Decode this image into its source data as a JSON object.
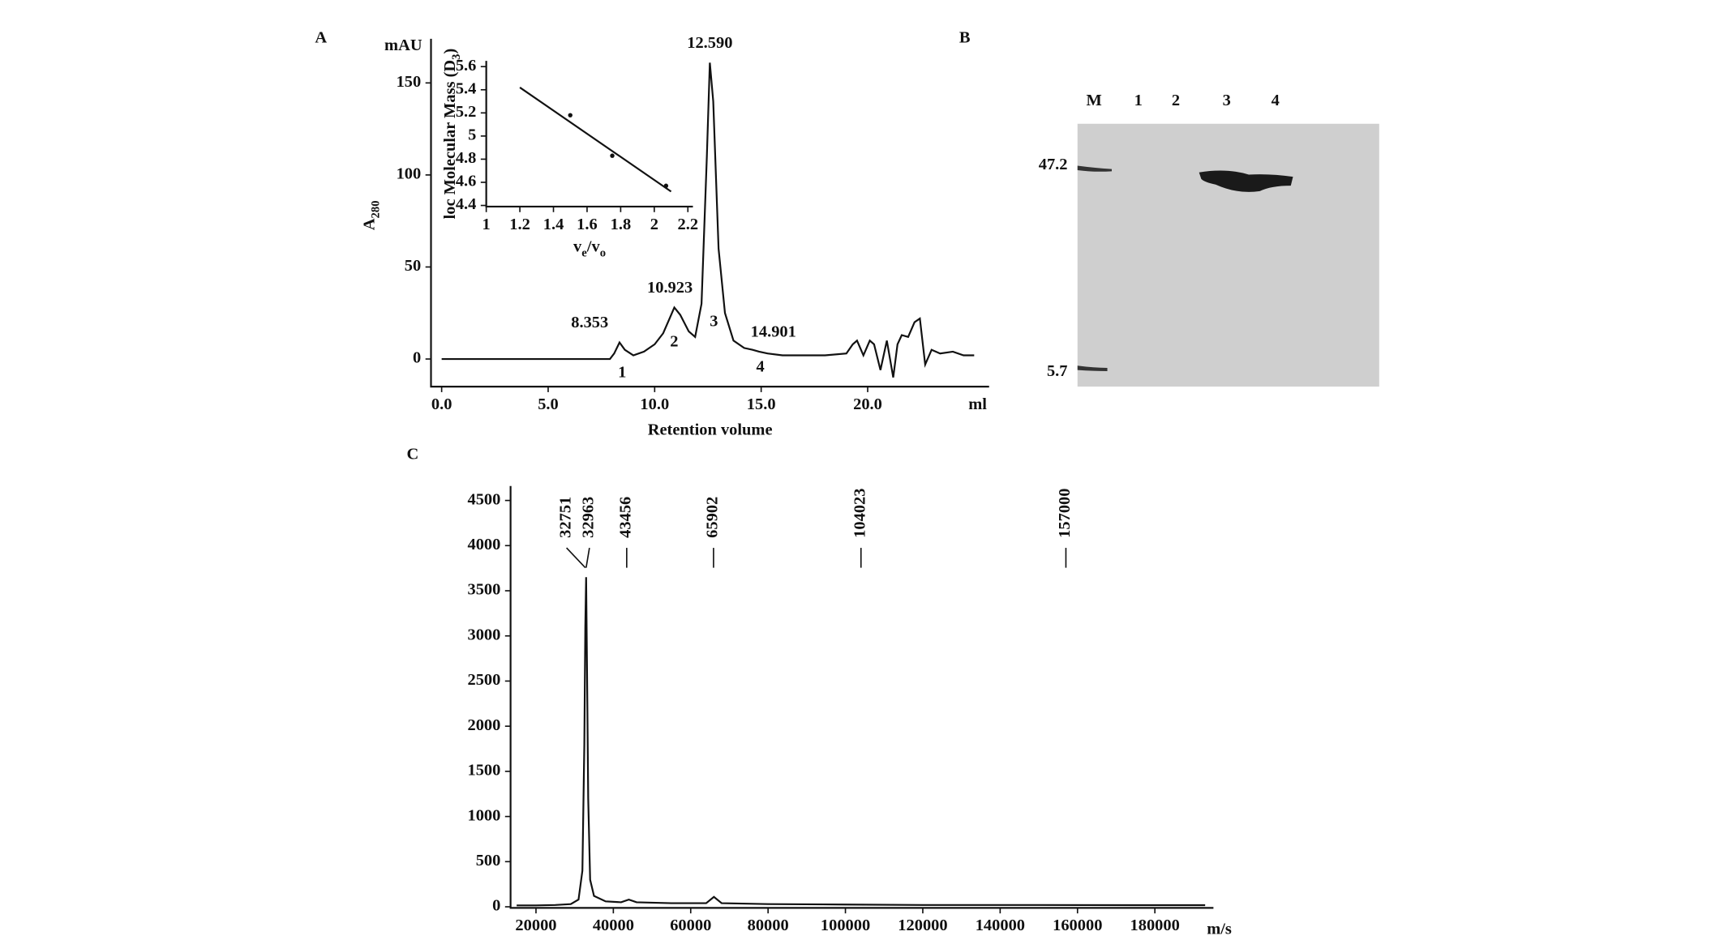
{
  "chart_data": [
    {
      "type": "line",
      "panel_label": "A",
      "y_unit": "mAU",
      "ylabel": [
        {
          "text": "A"
        },
        {
          "text": "280",
          "sub": true
        }
      ],
      "xlabel": "Retention volume",
      "x_unit": "ml",
      "xlim": [
        -0.5,
        25.7
      ],
      "ylim": [
        -15,
        174
      ],
      "xticks": [
        {
          "value": 0,
          "label": "0.0"
        },
        {
          "value": 5,
          "label": "5.0"
        },
        {
          "value": 10,
          "label": "10.0"
        },
        {
          "value": 15,
          "label": "15.0"
        },
        {
          "value": 20,
          "label": "20.0"
        }
      ],
      "yticks": [
        0,
        50,
        100,
        150
      ],
      "color": "#111111",
      "x": [
        0,
        7.9,
        8.1,
        8.35,
        8.6,
        9.0,
        9.5,
        10.0,
        10.4,
        10.7,
        10.923,
        11.2,
        11.6,
        11.9,
        12.2,
        12.45,
        12.59,
        12.75,
        13.0,
        13.3,
        13.7,
        14.2,
        14.6,
        14.901,
        15.3,
        16,
        17,
        18,
        19,
        19.3,
        19.5,
        19.8,
        20.1,
        20.3,
        20.6,
        20.9,
        21.2,
        21.4,
        21.6,
        21.9,
        22.2,
        22.45,
        22.7,
        23.0,
        23.4,
        24,
        24.5,
        25
      ],
      "values": [
        0,
        0,
        3,
        9,
        5,
        2,
        4,
        8,
        14,
        22,
        28,
        24,
        15,
        12,
        30,
        110,
        161,
        140,
        60,
        25,
        10,
        6,
        5,
        4,
        3,
        2,
        2,
        2,
        3,
        8,
        10,
        2,
        10,
        8,
        -6,
        10,
        -10,
        8,
        13,
        12,
        20,
        22,
        -3,
        5,
        3,
        4,
        2,
        2
      ],
      "peak_labels": [
        8.353,
        10.923,
        {
          "value": 12.59,
          "label": "12.590"
        },
        14.901
      ],
      "peak_numbers": [
        "1",
        "2",
        "3",
        "4"
      ]
    },
    {
      "type": "scatter",
      "ylabel": [
        {
          "text": "loc Molecular Mass (D"
        },
        {
          "text": "3",
          "sub": true
        },
        {
          "text": ")"
        }
      ],
      "xlabel": [
        {
          "text": "v"
        },
        {
          "text": "e",
          "sub": true
        },
        {
          "text": "/v"
        },
        {
          "text": "o",
          "sub": true
        }
      ],
      "xlim": [
        1,
        2.23
      ],
      "ylim": [
        4.39,
        5.65
      ],
      "xticks": [
        1,
        1.2,
        1.4,
        1.6,
        1.8,
        2,
        2.2
      ],
      "yticks": [
        4.4,
        4.6,
        4.8,
        5,
        5.2,
        5.4,
        5.6
      ],
      "x": [
        1.5,
        1.75,
        2.07
      ],
      "values": [
        5.18,
        4.83,
        4.57
      ],
      "fit": {
        "x": [
          1.2,
          2.1
        ],
        "values": [
          5.42,
          4.52
        ]
      },
      "color": "#111111"
    },
    {
      "type": "line",
      "panel_label": "C",
      "xlabel": "m/s",
      "xlim": [
        13430,
        195140
      ],
      "ylim": [
        -12,
        4660
      ],
      "xticks": [
        20000,
        40000,
        60000,
        80000,
        100000,
        120000,
        140000,
        160000,
        180000
      ],
      "yticks": [
        0,
        500,
        1000,
        1500,
        2000,
        2500,
        3000,
        3500,
        4000,
        4500
      ],
      "color": "#111111",
      "x": [
        15000,
        20000,
        25000,
        29000,
        31000,
        32000,
        32500,
        32751,
        32963,
        33200,
        33500,
        34000,
        35000,
        38000,
        42000,
        44000,
        46000,
        55000,
        64000,
        66000,
        68000,
        80000,
        100000,
        120000,
        150000,
        180000,
        193000
      ],
      "values": [
        15,
        15,
        20,
        30,
        80,
        400,
        1800,
        3100,
        3650,
        2600,
        1200,
        300,
        120,
        60,
        50,
        80,
        50,
        40,
        40,
        110,
        40,
        30,
        25,
        20,
        20,
        18,
        18
      ],
      "peak_labels": [
        32751,
        32963,
        43456,
        65902,
        104023,
        157000
      ]
    }
  ],
  "gel": {
    "panel_label": "B",
    "lanes": [
      "M",
      "1",
      "2",
      "3",
      "4"
    ],
    "markers": [
      "47.2",
      "5.7"
    ]
  }
}
